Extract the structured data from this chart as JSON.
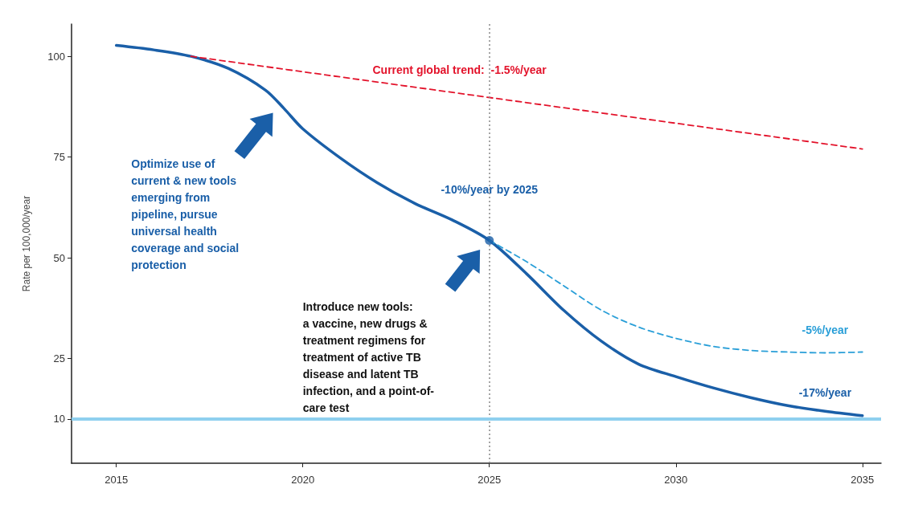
{
  "chart_data": {
    "type": "line",
    "ylabel": "Rate per 100,000/year",
    "xlim": [
      2013.8,
      2035.5
    ],
    "xticks": [
      2015,
      2020,
      2025,
      2030,
      2035
    ],
    "ylim": [
      -1,
      108
    ],
    "yticks": [
      10,
      25,
      50,
      75,
      100
    ],
    "grid": false,
    "marker": "none",
    "series": [
      {
        "color": "#1a5fa8",
        "line_style": "solid",
        "x": [
          2015,
          2016,
          2017,
          2018,
          2019,
          2019.5,
          2020,
          2021,
          2022,
          2023,
          2024,
          2025,
          2026,
          2027,
          2028,
          2029,
          2030,
          2031,
          2032,
          2033,
          2034,
          2035
        ],
        "values": [
          102.7,
          101.6,
          100,
          97,
          91.6,
          87,
          82,
          74.8,
          68.6,
          63.5,
          59.4,
          54.3,
          46,
          36.9,
          29.3,
          23.6,
          20.5,
          17.7,
          15.3,
          13.3,
          11.9,
          10.8
        ]
      },
      {
        "color": "#e3132b",
        "line_style": "dashed",
        "x": [
          2017,
          2035
        ],
        "values": [
          100,
          77
        ]
      },
      {
        "color": "#2a9fd8",
        "line_style": "dashed",
        "x": [
          2025,
          2026,
          2027,
          2028,
          2029,
          2030,
          2031,
          2032,
          2033,
          2034,
          2035
        ],
        "values": [
          54.3,
          49,
          43,
          37,
          32.8,
          30,
          28,
          27,
          26.6,
          26.4,
          26.6
        ]
      },
      {
        "type": "scatter",
        "marker": "circle",
        "color": "#1a5fa8",
        "x": [
          2025
        ],
        "values": [
          54.3
        ]
      }
    ],
    "ref_lines": [
      {
        "axis": "x",
        "value": 2025,
        "color": "#888888",
        "line_style": "dotted"
      },
      {
        "axis": "y",
        "value": 10,
        "color": "#8fd0ef",
        "line_style": "solid"
      }
    ],
    "annotations": [
      "Current global trend:  -1.5%/year",
      {
        "text": "-10%/year by 2025",
        "x": 2025,
        "y": 67
      },
      "-5%/year",
      "-17%/year",
      "Optimize use of\ncurrent & new tools\nemerging from\npipeline, pursue\nuniversal health\ncoverage and social\nprotection",
      "Introduce new tools:\na vaccine, new drugs &\ntreatment regimens for\ntreatment of active TB\ndisease and latent TB\ninfection, and a point-of-\ncare test"
    ]
  }
}
